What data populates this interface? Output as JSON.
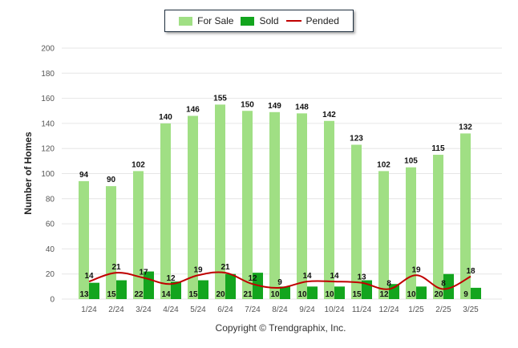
{
  "colors": {
    "for_sale": "#a0df84",
    "sold": "#13a51e",
    "pended": "#c00000",
    "grid": "#e6e6e6",
    "axis_text": "#555555"
  },
  "legend": {
    "for_sale": "For Sale",
    "sold": "Sold",
    "pended": "Pended"
  },
  "copyright": "Copyright © Trendgraphix, Inc.",
  "chart_data": {
    "type": "bar",
    "title": "",
    "xlabel": "",
    "ylabel": "Number of Homes",
    "ylim": [
      0,
      200
    ],
    "yticks": [
      0,
      20,
      40,
      60,
      80,
      100,
      120,
      140,
      160,
      180,
      200
    ],
    "grid": true,
    "legend_position": "top-center",
    "categories": [
      "1/24",
      "2/24",
      "3/24",
      "4/24",
      "5/24",
      "6/24",
      "7/24",
      "8/24",
      "9/24",
      "10/24",
      "11/24",
      "12/24",
      "1/25",
      "2/25",
      "3/25"
    ],
    "series": [
      {
        "name": "For Sale",
        "type": "bar",
        "values": [
          94,
          90,
          102,
          140,
          146,
          155,
          150,
          149,
          148,
          142,
          123,
          102,
          105,
          115,
          132
        ]
      },
      {
        "name": "Sold",
        "type": "bar",
        "values": [
          13,
          15,
          22,
          14,
          15,
          20,
          21,
          10,
          10,
          10,
          15,
          12,
          10,
          20,
          9
        ]
      },
      {
        "name": "Pended",
        "type": "line",
        "values": [
          14,
          21,
          17,
          12,
          19,
          21,
          12,
          9,
          14,
          14,
          13,
          8,
          19,
          8,
          18
        ]
      }
    ]
  }
}
